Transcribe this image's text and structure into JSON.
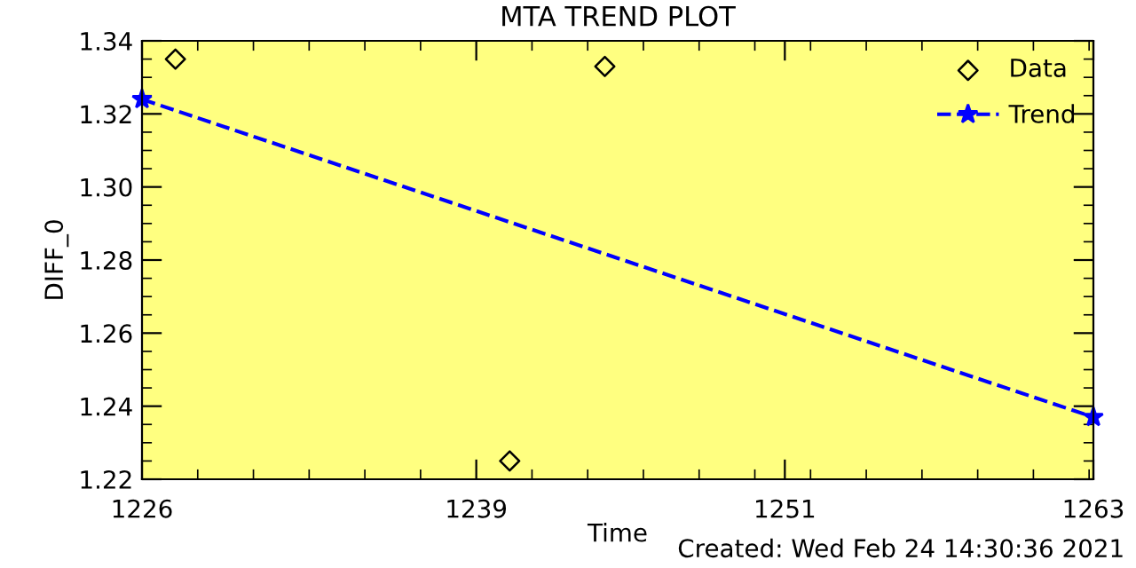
{
  "chart_data": {
    "type": "scatter",
    "title": "MTA TREND PLOT",
    "xlabel": "Time",
    "ylabel": "DIFF_0",
    "xlim": [
      1226,
      1263
    ],
    "xticks": [
      1226,
      1239,
      1251,
      1263
    ],
    "ylim": [
      1.22,
      1.34
    ],
    "yticks": [
      1.22,
      1.24,
      1.26,
      1.28,
      {
        "value": 1.3,
        "label": "1.30"
      },
      1.32,
      1.34
    ],
    "series": [
      {
        "name": "Data",
        "marker": "diamond",
        "color": "#000000",
        "x": [
          1227.3,
          1240.3,
          1244.0
        ],
        "values": [
          1.335,
          1.225,
          1.333
        ]
      },
      {
        "name": "Trend",
        "type": "line",
        "marker": "star",
        "line_style": "dashed",
        "color": "#0000ff",
        "x": [
          1226,
          1263
        ],
        "values": [
          1.324,
          1.237
        ]
      }
    ],
    "legend": "top right",
    "grid": false,
    "annotations": [
      "Created: Wed Feb 24 14:30:36 2021"
    ]
  }
}
